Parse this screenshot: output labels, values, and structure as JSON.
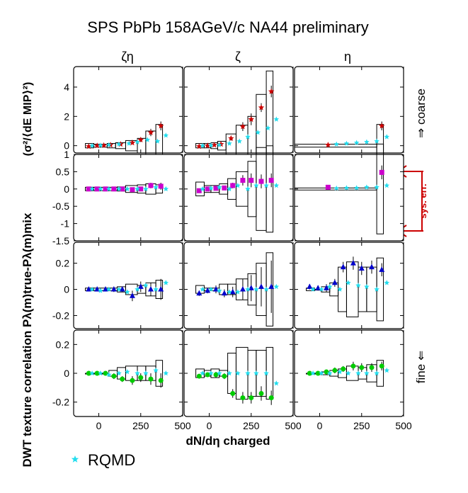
{
  "title": "SPS PbPb 158AGeV/c NA44 preliminary",
  "ylabel_main": "DWT texture correlation Pλ(m)true-Pλ(m)mix",
  "ylabel_units": "(σ²/⟨dE MIP⟩²)",
  "xlabel": "dN/dη charged",
  "column_labels": [
    "ζη",
    "ζ",
    "η"
  ],
  "row_labels": [
    "⇒ coarse",
    "",
    "",
    "fine ⇐"
  ],
  "sys_err_label": "sys. err.",
  "legend": {
    "label": "RQMD",
    "color": "#22ddee"
  },
  "x_ticks": [
    "0",
    "250",
    "500"
  ],
  "row_ticks": [
    [
      "4",
      "2",
      "0"
    ],
    [
      "1",
      "0.5",
      "0",
      "-0.5",
      "-1",
      "-1.5"
    ],
    [
      "0.2",
      "0",
      "-0.2"
    ],
    [
      "0.2",
      "0",
      "-0.2"
    ]
  ],
  "chart_data": {
    "type": "scatter",
    "xlim": [
      -150,
      500
    ],
    "ylims": [
      [
        -0.5,
        5.4
      ],
      [
        -1.5,
        1.0
      ],
      [
        -0.3,
        0.36
      ],
      [
        -0.3,
        0.3
      ]
    ],
    "row_colors": [
      "#cc0000",
      "#cc00cc",
      "#0000cc",
      "#00cc00"
    ],
    "row_markers": [
      "star",
      "square",
      "triangle",
      "circle"
    ],
    "panels": [
      {
        "row": 0,
        "col": 0,
        "x": [
          -60,
          -10,
          30,
          70,
          130,
          200,
          250,
          310,
          370
        ],
        "y": [
          -0.05,
          0.0,
          0.02,
          0.05,
          0.1,
          0.2,
          0.4,
          0.9,
          1.35
        ],
        "err": [
          0.03,
          0.03,
          0.03,
          0.05,
          0.08,
          0.1,
          0.15,
          0.25,
          0.3
        ],
        "sys": [
          [
            -80,
            -30,
            0.15
          ],
          [
            -30,
            10,
            0.1
          ],
          [
            10,
            50,
            0.1
          ],
          [
            50,
            100,
            0.15
          ],
          [
            100,
            160,
            0.2
          ],
          [
            160,
            230,
            0.35
          ],
          [
            230,
            280,
            0.5
          ],
          [
            280,
            340,
            1.0
          ],
          [
            340,
            380,
            1.45
          ]
        ],
        "rqmd": {
          "x": [
            -40,
            10,
            60,
            120,
            180,
            230,
            290,
            350,
            400
          ],
          "y": [
            0.0,
            0.02,
            0.05,
            0.1,
            0.15,
            0.25,
            0.4,
            0.3,
            0.7
          ]
        }
      },
      {
        "row": 0,
        "col": 1,
        "x": [
          -60,
          -10,
          30,
          70,
          130,
          200,
          250,
          310,
          370
        ],
        "y": [
          -0.05,
          0.0,
          0.05,
          0.1,
          0.5,
          1.3,
          1.8,
          2.6,
          3.7
        ],
        "err": [
          0.03,
          0.03,
          0.05,
          0.08,
          0.15,
          0.3,
          0.4,
          0.3,
          0.4
        ],
        "sys": [
          [
            -80,
            -30,
            0.15
          ],
          [
            -30,
            10,
            0.15
          ],
          [
            10,
            50,
            0.2
          ],
          [
            50,
            100,
            0.3
          ],
          [
            100,
            160,
            0.8
          ],
          [
            160,
            230,
            1.4
          ],
          [
            230,
            280,
            2.0
          ],
          [
            280,
            340,
            3.5
          ],
          [
            340,
            380,
            5.1
          ]
        ],
        "rqmd": {
          "x": [
            -40,
            10,
            60,
            120,
            180,
            230,
            290,
            350,
            400
          ],
          "y": [
            0.0,
            0.02,
            0.05,
            0.15,
            0.3,
            0.6,
            0.9,
            1.2,
            1.8
          ]
        }
      },
      {
        "row": 0,
        "col": 2,
        "x": [
          50,
          370
        ],
        "y": [
          0.05,
          1.35
        ],
        "err": [
          0.05,
          0.3
        ],
        "sys": [
          [
            -150,
            340,
            0.1
          ],
          [
            340,
            380,
            1.45
          ]
        ],
        "rqmd": {
          "x": [
            100,
            160,
            220,
            280,
            340,
            400
          ],
          "y": [
            0.1,
            0.15,
            0.2,
            0.25,
            0.3,
            0.6
          ]
        }
      },
      {
        "row": 1,
        "col": 0,
        "x": [
          -60,
          -10,
          40,
          90,
          140,
          200,
          250,
          310,
          370
        ],
        "y": [
          0.0,
          0.0,
          0.0,
          0.0,
          0.0,
          -0.02,
          0.0,
          0.1,
          0.08
        ],
        "err": [
          0.02,
          0.02,
          0.02,
          0.03,
          0.03,
          0.05,
          0.05,
          0.08,
          0.1
        ],
        "sys": [
          [
            -80,
            -30,
            0.05
          ],
          [
            -30,
            10,
            0.05
          ],
          [
            10,
            60,
            0.05
          ],
          [
            60,
            110,
            0.05
          ],
          [
            110,
            160,
            0.06
          ],
          [
            160,
            230,
            0.1
          ],
          [
            230,
            280,
            0.12
          ],
          [
            280,
            340,
            0.15
          ],
          [
            340,
            380,
            0.12
          ]
        ],
        "rqmd": {
          "x": [
            -40,
            10,
            60,
            120,
            170,
            230,
            280,
            340,
            400
          ],
          "y": [
            0.0,
            0.0,
            0.0,
            0.0,
            0.0,
            0.0,
            0.0,
            0.05,
            0.0
          ]
        }
      },
      {
        "row": 1,
        "col": 1,
        "x": [
          -60,
          -10,
          40,
          90,
          140,
          200,
          250,
          310,
          370
        ],
        "y": [
          -0.05,
          0.0,
          0.02,
          0.03,
          0.1,
          0.25,
          0.25,
          0.22,
          0.25
        ],
        "err": [
          0.03,
          0.03,
          0.04,
          0.05,
          0.08,
          0.15,
          0.2,
          0.2,
          0.2
        ],
        "sys": [
          [
            -80,
            -30,
            0.2
          ],
          [
            -30,
            10,
            0.1
          ],
          [
            10,
            60,
            0.1
          ],
          [
            60,
            110,
            0.15
          ],
          [
            110,
            160,
            0.3
          ],
          [
            160,
            230,
            0.5
          ],
          [
            230,
            280,
            0.8
          ],
          [
            280,
            340,
            1.2
          ],
          [
            340,
            380,
            1.25
          ]
        ],
        "rqmd": {
          "x": [
            -40,
            10,
            60,
            120,
            170,
            230,
            280,
            340,
            400
          ],
          "y": [
            0.0,
            0.02,
            0.05,
            0.0,
            0.1,
            0.0,
            0.1,
            0.1,
            0.1
          ]
        }
      },
      {
        "row": 1,
        "col": 2,
        "x": [
          50,
          370
        ],
        "y": [
          0.05,
          0.48
        ],
        "err": [
          0.03,
          0.2
        ],
        "sys": [
          [
            -150,
            340,
            0.03
          ],
          [
            340,
            380,
            1.3
          ]
        ],
        "rqmd": {
          "x": [
            100,
            160,
            220,
            280,
            340,
            400
          ],
          "y": [
            0.02,
            0.03,
            0.03,
            0.05,
            0.05,
            0.1
          ]
        }
      },
      {
        "row": 2,
        "col": 0,
        "x": [
          -60,
          -10,
          40,
          90,
          140,
          200,
          250,
          310,
          370
        ],
        "y": [
          0.0,
          0.0,
          0.0,
          0.0,
          0.0,
          -0.05,
          0.02,
          0.0,
          0.0
        ],
        "err": [
          0.01,
          0.01,
          0.01,
          0.02,
          0.02,
          0.04,
          0.04,
          0.05,
          0.08
        ],
        "sys": [
          [
            -80,
            -30,
            0.01
          ],
          [
            -30,
            10,
            0.01
          ],
          [
            10,
            60,
            0.01
          ],
          [
            60,
            110,
            0.01
          ],
          [
            110,
            160,
            0.02
          ],
          [
            160,
            230,
            0.04
          ],
          [
            230,
            280,
            0.03
          ],
          [
            280,
            340,
            0.05
          ],
          [
            340,
            380,
            0.07
          ]
        ],
        "rqmd": {
          "x": [
            -40,
            10,
            60,
            120,
            170,
            230,
            280,
            340,
            400
          ],
          "y": [
            0.0,
            -0.01,
            0.0,
            0.0,
            -0.02,
            0.0,
            0.03,
            0.0,
            0.05
          ]
        }
      },
      {
        "row": 2,
        "col": 1,
        "x": [
          -60,
          -10,
          40,
          90,
          140,
          200,
          250,
          310,
          370
        ],
        "y": [
          -0.03,
          -0.01,
          0.0,
          -0.03,
          -0.02,
          0.0,
          0.01,
          0.02,
          0.02
        ],
        "err": [
          0.02,
          0.02,
          0.03,
          0.03,
          0.04,
          0.08,
          0.1,
          0.15,
          0.2
        ],
        "sys": [
          [
            -80,
            -30,
            0.03
          ],
          [
            -30,
            10,
            0.01
          ],
          [
            10,
            60,
            0.01
          ],
          [
            60,
            110,
            0.04
          ],
          [
            110,
            160,
            0.04
          ],
          [
            160,
            230,
            0.08
          ],
          [
            230,
            280,
            0.12
          ],
          [
            280,
            340,
            0.2
          ],
          [
            340,
            380,
            0.28
          ]
        ],
        "rqmd": {
          "x": [
            -40,
            10,
            60,
            120,
            170,
            230,
            280,
            340,
            400
          ],
          "y": [
            0.0,
            0.0,
            -0.01,
            -0.02,
            -0.02,
            0.0,
            0.0,
            0.0,
            0.02
          ]
        }
      },
      {
        "row": 2,
        "col": 2,
        "x": [
          -60,
          -10,
          40,
          90,
          140,
          200,
          250,
          310,
          370
        ],
        "y": [
          0.02,
          0.01,
          0.01,
          0.05,
          0.17,
          0.2,
          0.16,
          0.17,
          0.15
        ],
        "err": [
          0.02,
          0.02,
          0.03,
          0.03,
          0.04,
          0.05,
          0.05,
          0.05,
          0.05
        ],
        "sys": [
          [
            -80,
            -30,
            0.01
          ],
          [
            -30,
            10,
            0.0
          ],
          [
            10,
            60,
            0.02
          ],
          [
            60,
            110,
            0.05
          ],
          [
            110,
            160,
            0.17
          ],
          [
            160,
            230,
            0.21
          ],
          [
            230,
            280,
            0.17
          ],
          [
            280,
            340,
            0.17
          ],
          [
            340,
            380,
            0.24
          ]
        ],
        "rqmd": {
          "x": [
            -40,
            10,
            60,
            120,
            170,
            230,
            280,
            340,
            400
          ],
          "y": [
            0.0,
            0.0,
            0.02,
            0.0,
            0.05,
            0.03,
            0.02,
            0.0,
            0.05
          ]
        }
      },
      {
        "row": 3,
        "col": 0,
        "x": [
          -60,
          -10,
          40,
          90,
          140,
          200,
          250,
          310,
          370
        ],
        "y": [
          0.0,
          0.0,
          0.0,
          -0.02,
          -0.04,
          -0.05,
          -0.03,
          -0.04,
          -0.05
        ],
        "err": [
          0.01,
          0.01,
          0.01,
          0.02,
          0.02,
          0.03,
          0.03,
          0.04,
          0.05
        ],
        "sys": [
          [
            -80,
            -30,
            0.0
          ],
          [
            -30,
            10,
            0.0
          ],
          [
            10,
            60,
            0.0
          ],
          [
            60,
            110,
            0.02
          ],
          [
            110,
            160,
            0.04
          ],
          [
            160,
            230,
            0.05
          ],
          [
            230,
            280,
            0.05
          ],
          [
            280,
            340,
            0.05
          ],
          [
            340,
            380,
            0.09
          ]
        ],
        "rqmd": {
          "x": [
            -40,
            10,
            60,
            120,
            170,
            230,
            280,
            340,
            400
          ],
          "y": [
            0.0,
            0.0,
            -0.01,
            0.0,
            0.01,
            0.0,
            0.0,
            0.02,
            0.0
          ]
        }
      },
      {
        "row": 3,
        "col": 1,
        "x": [
          -60,
          -10,
          40,
          90,
          140,
          200,
          250,
          310,
          370
        ],
        "y": [
          -0.02,
          -0.01,
          -0.01,
          -0.02,
          -0.14,
          -0.17,
          -0.17,
          -0.14,
          -0.17
        ],
        "err": [
          0.01,
          0.01,
          0.02,
          0.02,
          0.03,
          0.04,
          0.04,
          0.05,
          0.05
        ],
        "sys": [
          [
            -80,
            -30,
            0.03
          ],
          [
            -30,
            10,
            0.02
          ],
          [
            10,
            60,
            0.03
          ],
          [
            60,
            110,
            0.02
          ],
          [
            110,
            160,
            0.14
          ],
          [
            160,
            230,
            0.18
          ],
          [
            230,
            280,
            0.16
          ],
          [
            280,
            340,
            0.16
          ],
          [
            340,
            380,
            0.18
          ]
        ],
        "rqmd": {
          "x": [
            -40,
            10,
            60,
            120,
            170,
            230,
            280,
            340,
            400
          ],
          "y": [
            0.0,
            0.0,
            0.0,
            0.0,
            0.0,
            0.0,
            0.0,
            0.0,
            -0.07
          ]
        }
      },
      {
        "row": 3,
        "col": 2,
        "x": [
          -60,
          -10,
          40,
          90,
          140,
          200,
          250,
          310,
          370
        ],
        "y": [
          0.0,
          0.0,
          0.01,
          0.02,
          0.03,
          0.05,
          0.04,
          0.04,
          0.05
        ],
        "err": [
          0.01,
          0.01,
          0.01,
          0.02,
          0.02,
          0.03,
          0.03,
          0.03,
          0.03
        ],
        "sys": [
          [
            -80,
            -30,
            0.0
          ],
          [
            -30,
            10,
            0.0
          ],
          [
            10,
            60,
            0.01
          ],
          [
            60,
            110,
            0.02
          ],
          [
            110,
            160,
            0.03
          ],
          [
            160,
            230,
            0.05
          ],
          [
            230,
            280,
            0.04
          ],
          [
            280,
            340,
            0.06
          ],
          [
            340,
            380,
            0.09
          ]
        ],
        "rqmd": {
          "x": [
            -40,
            10,
            60,
            120,
            170,
            230,
            280,
            340,
            400
          ],
          "y": [
            0.0,
            0.0,
            0.0,
            0.01,
            0.0,
            0.0,
            0.0,
            0.0,
            0.02
          ]
        }
      }
    ]
  }
}
